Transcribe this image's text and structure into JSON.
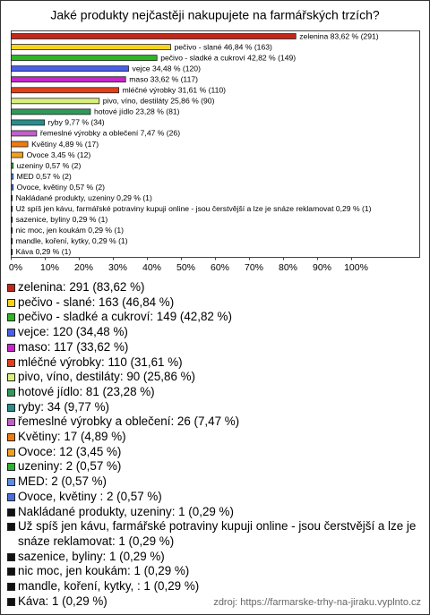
{
  "chart_data": {
    "type": "bar",
    "orientation": "horizontal",
    "title": "Jaké produkty nejčastěji nakupujete na farmářských trzích?",
    "categories": [
      "zelenina",
      "pečivo - slané",
      "pečivo - sladké a cukroví",
      "vejce",
      "maso",
      "mléčné výrobky",
      "pivo, víno, destiláty",
      "hotové jídlo",
      "ryby",
      "řemeslné výrobky a oblečení",
      "Květiny",
      "Ovoce",
      "uzeniny",
      "MED",
      "Ovoce, květiny ",
      "Nakládané produkty, uzeniny",
      "Už spíš jen kávu, farmářské potraviny kupuji online - jsou čerstvější a lze je snáze reklamovat",
      "sazenice, byliny",
      "nic moc, jen koukám",
      "mandle, koření, kytky, ",
      "Káva"
    ],
    "values": [
      83.62,
      46.84,
      42.82,
      34.48,
      33.62,
      31.61,
      25.86,
      23.28,
      9.77,
      7.47,
      4.89,
      3.45,
      0.57,
      0.57,
      0.57,
      0.29,
      0.29,
      0.29,
      0.29,
      0.29,
      0.29
    ],
    "value_labels": [
      "zelenina 83,62 % (291)",
      "pečivo - slané 46,84 % (163)",
      "pečivo - sladké a cukroví 42,82 % (149)",
      "vejce 34,48 % (120)",
      "maso 33,62 % (117)",
      "mléčné výrobky 31,61 % (110)",
      "pivo, víno, destiláty 25,86 % (90)",
      "hotové jídlo 23,28 % (81)",
      "ryby 9,77 % (34)",
      "řemeslné výrobky a oblečení 7,47 % (26)",
      "Květiny 4,89 % (17)",
      "Ovoce 3,45 % (12)",
      "uzeniny 0,57 % (2)",
      "MED 0,57 % (2)",
      "Ovoce, květiny  0,57 % (2)",
      "Nakládané produkty, uzeniny 0,29 % (1)",
      "Už spíš jen kávu, farmářské potraviny kupuji online - jsou čerstvější a lze je snáze reklamovat 0,29 % (1)",
      "sazenice, byliny 0,29 % (1)",
      "nic moc, jen koukám 0,29 % (1)",
      "mandle, koření, kytky,  0,29 % (1)",
      "Káva 0,29 % (1)"
    ],
    "legend": [
      "zelenina: 291 (83,62 %)",
      "pečivo - slané: 163 (46,84 %)",
      "pečivo - sladké a cukroví: 149 (42,82 %)",
      "vejce: 120 (34,48 %)",
      "maso: 117 (33,62 %)",
      "mléčné výrobky: 110 (31,61 %)",
      "pivo, víno, destiláty: 90 (25,86 %)",
      "hotové jídlo: 81 (23,28 %)",
      "ryby: 34 (9,77 %)",
      "řemeslné výrobky a oblečení: 26 (7,47 %)",
      "Květiny: 17 (4,89 %)",
      "Ovoce: 12 (3,45 %)",
      "uzeniny: 2 (0,57 %)",
      "MED: 2 (0,57 %)",
      "Ovoce, květiny : 2 (0,57 %)",
      "Nakládané produkty, uzeniny: 1 (0,29 %)",
      "Už spíš jen kávu, farmářské potraviny kupuji online - jsou čerstvější a lze je snáze reklamovat: 1 (0,29 %)",
      "sazenice, byliny: 1 (0,29 %)",
      "nic moc, jen koukám: 1 (0,29 %)",
      "mandle, koření, kytky, : 1 (0,29 %)",
      "Káva: 1 (0,29 %)"
    ],
    "colors": [
      "#c0281c",
      "#f5d31c",
      "#2fb526",
      "#4a5ee8",
      "#c826c8",
      "#e0401c",
      "#d8ef7a",
      "#2e9a5a",
      "#2a8c8c",
      "#c060c8",
      "#f07a10",
      "#f0a020",
      "#30b030",
      "#5a8ee0",
      "#4a6ed8",
      "#111111",
      "#111111",
      "#111111",
      "#111111",
      "#111111",
      "#111111"
    ],
    "xlim": [
      0,
      120
    ],
    "xticks": [
      {
        "value": 0,
        "label": "0%"
      },
      {
        "value": 10,
        "label": "10%"
      },
      {
        "value": 20,
        "label": "20%"
      },
      {
        "value": 30,
        "label": "30%"
      },
      {
        "value": 40,
        "label": "40%"
      },
      {
        "value": 50,
        "label": "50%"
      },
      {
        "value": 60,
        "label": "60%"
      },
      {
        "value": 70,
        "label": "70%"
      },
      {
        "value": 80,
        "label": "80%"
      },
      {
        "value": 90,
        "label": "90%"
      },
      {
        "value": 100,
        "label": "100%"
      }
    ],
    "source": "zdroj: https://farmarske-trhy-na-jiraku.vyplnto.cz"
  }
}
